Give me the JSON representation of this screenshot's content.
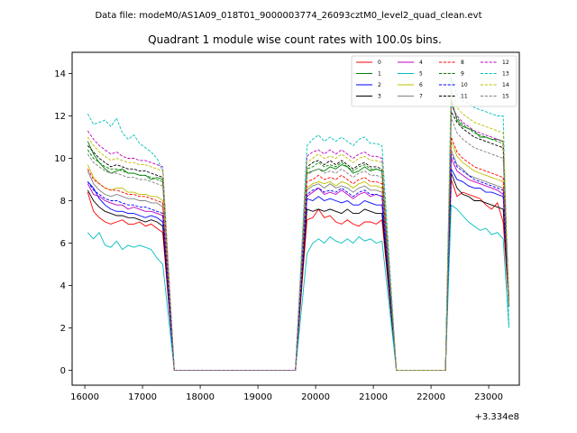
{
  "file_label": "Data file: modeM0/AS1A09_018T01_9000003774_26093cztM0_level2_quad_clean.evt",
  "chart_data": {
    "type": "line",
    "title": "Quadrant 1 module wise count rates with 100.0s bins.",
    "xlabel": "",
    "ylabel": "",
    "x_offset_label": "+3.334e8",
    "xlim": [
      15780,
      23530
    ],
    "ylim": [
      -0.7,
      15.0
    ],
    "xticks": [
      16000,
      17000,
      18000,
      19000,
      20000,
      21000,
      22000,
      23000
    ],
    "yticks": [
      0,
      2,
      4,
      6,
      8,
      10,
      12,
      14
    ],
    "bins": {
      "seg1": {
        "start": 16050,
        "end": 17350
      },
      "drop1": 17550,
      "gap1_end": 19650,
      "seg2": {
        "start": 19850,
        "end": 21150
      },
      "drop2": 21400,
      "gap2_end": 22250,
      "seg3": {
        "start": 22350,
        "end": 23250
      },
      "final": 23350
    },
    "legend": {
      "location": "upper right",
      "columns": 4
    },
    "series": [
      {
        "name": "0",
        "color": "#ff0000",
        "dash": "solid",
        "seg1": [
          8.4,
          7.5,
          7.2,
          7.0,
          6.9,
          7.0,
          7.1,
          6.9,
          6.9,
          7.0,
          6.8,
          6.9,
          6.7,
          6.5
        ],
        "seg2": [
          7.1,
          7.2,
          7.6,
          7.2,
          7.3,
          7.0,
          6.9,
          7.1,
          6.9,
          6.8,
          7.0,
          7.0,
          6.9,
          7.1
        ],
        "seg3": [
          9.0,
          8.2,
          8.4,
          8.3,
          8.2,
          8.1,
          7.8,
          7.6,
          7.9,
          7.0
        ],
        "final": 3.0
      },
      {
        "name": "1",
        "color": "#008000",
        "dash": "solid",
        "seg1": [
          10.8,
          10.2,
          9.8,
          9.5,
          9.3,
          9.4,
          9.5,
          9.3,
          9.3,
          9.2,
          9.2,
          9.0,
          9.1,
          9.0
        ],
        "seg2": [
          9.3,
          9.4,
          9.5,
          9.4,
          9.6,
          9.5,
          9.7,
          9.6,
          9.3,
          9.4,
          9.6,
          9.4,
          9.5,
          9.4
        ],
        "seg3": [
          12.8,
          11.8,
          11.5,
          11.4,
          11.3,
          11.0,
          11.0,
          10.9,
          10.9,
          10.8
        ],
        "final": 3.1
      },
      {
        "name": "2",
        "color": "#0000ff",
        "dash": "solid",
        "seg1": [
          8.9,
          8.6,
          8.1,
          7.8,
          7.6,
          7.5,
          7.5,
          7.4,
          7.4,
          7.3,
          7.2,
          7.3,
          7.2,
          7.0
        ],
        "seg2": [
          8.1,
          8.0,
          8.2,
          8.0,
          8.1,
          8.0,
          7.9,
          8.0,
          7.8,
          7.8,
          8.0,
          7.9,
          7.8,
          7.8
        ],
        "seg3": [
          9.5,
          9.0,
          8.9,
          8.7,
          8.6,
          8.6,
          8.4,
          8.4,
          8.3,
          8.2
        ],
        "final": 3.3
      },
      {
        "name": "3",
        "color": "#000000",
        "dash": "solid",
        "seg1": [
          8.5,
          8.0,
          7.7,
          7.5,
          7.4,
          7.3,
          7.3,
          7.2,
          7.2,
          7.1,
          7.0,
          7.1,
          7.0,
          6.8
        ],
        "seg2": [
          7.6,
          7.5,
          7.6,
          7.5,
          7.6,
          7.5,
          7.4,
          7.6,
          7.4,
          7.4,
          7.6,
          7.5,
          7.4,
          7.4
        ],
        "seg3": [
          9.3,
          8.6,
          8.3,
          8.2,
          8.0,
          8.0,
          7.9,
          7.8,
          7.7,
          7.6
        ],
        "final": 3.2
      },
      {
        "name": "4",
        "color": "#bf00bf",
        "dash": "solid",
        "seg1": [
          8.8,
          8.3,
          8.2,
          8.0,
          7.9,
          7.8,
          7.8,
          7.6,
          7.7,
          7.6,
          7.5,
          7.5,
          7.4,
          7.3
        ],
        "seg2": [
          8.2,
          8.4,
          8.6,
          8.3,
          8.4,
          8.3,
          8.5,
          8.3,
          8.1,
          8.3,
          8.4,
          8.2,
          8.3,
          8.2
        ],
        "seg3": [
          10.0,
          9.4,
          9.2,
          9.0,
          8.9,
          8.8,
          8.7,
          8.6,
          8.5,
          8.3
        ],
        "final": 3.4
      },
      {
        "name": "5",
        "color": "#00bfbf",
        "dash": "solid",
        "seg1": [
          6.5,
          6.2,
          6.5,
          5.9,
          5.8,
          6.1,
          5.7,
          5.9,
          5.8,
          5.9,
          5.8,
          5.7,
          5.3,
          5.0
        ],
        "seg2": [
          5.5,
          6.0,
          6.2,
          6.0,
          6.3,
          6.1,
          6.0,
          6.2,
          6.0,
          6.3,
          6.1,
          6.2,
          6.0,
          6.1
        ],
        "seg3": [
          7.8,
          7.6,
          7.3,
          7.0,
          6.8,
          6.6,
          6.7,
          6.4,
          6.5,
          6.2
        ],
        "final": 2.0
      },
      {
        "name": "6",
        "color": "#bfbf00",
        "dash": "solid",
        "seg1": [
          9.7,
          9.1,
          8.8,
          8.6,
          8.5,
          8.6,
          8.6,
          8.4,
          8.4,
          8.3,
          8.3,
          8.2,
          8.2,
          8.0
        ],
        "seg2": [
          8.6,
          8.8,
          8.9,
          8.8,
          8.9,
          8.7,
          8.9,
          8.8,
          8.6,
          8.8,
          8.9,
          8.7,
          8.7,
          8.6
        ],
        "seg3": [
          10.8,
          10.1,
          9.8,
          9.6,
          9.4,
          9.3,
          9.2,
          9.1,
          9.0,
          8.9
        ],
        "final": 3.5
      },
      {
        "name": "7",
        "color": "#808080",
        "dash": "solid",
        "seg1": [
          9.4,
          8.8,
          8.5,
          8.3,
          8.2,
          8.3,
          8.2,
          8.1,
          8.1,
          8.0,
          8.0,
          7.9,
          7.9,
          7.7
        ],
        "seg2": [
          8.5,
          8.7,
          8.8,
          8.6,
          8.8,
          8.6,
          8.7,
          8.6,
          8.4,
          8.6,
          8.7,
          8.5,
          8.5,
          8.4
        ],
        "seg3": [
          10.4,
          9.7,
          9.5,
          9.2,
          9.1,
          9.0,
          8.9,
          8.8,
          8.7,
          8.6
        ],
        "final": 3.3
      },
      {
        "name": "8",
        "color": "#ff0000",
        "dash": "dashed",
        "seg1": [
          9.5,
          9.0,
          8.8,
          8.6,
          8.5,
          8.5,
          8.4,
          8.3,
          8.3,
          8.2,
          8.2,
          8.1,
          8.0,
          7.9
        ],
        "seg2": [
          8.9,
          9.0,
          9.2,
          9.0,
          9.1,
          9.0,
          9.2,
          9.0,
          8.8,
          9.0,
          9.1,
          8.9,
          8.9,
          8.8
        ],
        "seg3": [
          11.0,
          10.3,
          10.0,
          9.8,
          9.6,
          9.5,
          9.4,
          9.3,
          9.2,
          9.1
        ],
        "final": 3.2
      },
      {
        "name": "9",
        "color": "#008000",
        "dash": "dashed",
        "seg1": [
          10.4,
          10.0,
          9.8,
          9.6,
          9.5,
          9.5,
          9.4,
          9.3,
          9.3,
          9.2,
          9.2,
          9.1,
          9.0,
          8.9
        ],
        "seg2": [
          9.5,
          9.6,
          9.8,
          9.6,
          9.7,
          9.6,
          9.8,
          9.6,
          9.4,
          9.6,
          9.7,
          9.5,
          9.5,
          9.4
        ],
        "seg3": [
          12.6,
          11.9,
          11.6,
          11.4,
          11.2,
          11.1,
          11.0,
          10.9,
          10.8,
          10.7
        ],
        "final": 3.0
      },
      {
        "name": "10",
        "color": "#0000ff",
        "dash": "dashed",
        "seg1": [
          8.9,
          8.5,
          8.3,
          8.1,
          8.0,
          8.0,
          7.9,
          7.8,
          7.8,
          7.7,
          7.7,
          7.6,
          7.5,
          7.4
        ],
        "seg2": [
          8.3,
          8.5,
          8.6,
          8.4,
          8.5,
          8.4,
          8.6,
          8.4,
          8.2,
          8.4,
          8.5,
          8.3,
          8.3,
          8.2
        ],
        "seg3": [
          10.2,
          9.6,
          9.4,
          9.2,
          9.0,
          8.9,
          8.8,
          8.7,
          8.6,
          8.5
        ],
        "final": 3.3
      },
      {
        "name": "11",
        "color": "#000000",
        "dash": "dashed",
        "seg1": [
          10.6,
          10.3,
          10.0,
          9.8,
          9.6,
          9.7,
          9.6,
          9.5,
          9.5,
          9.4,
          9.4,
          9.3,
          9.2,
          9.1
        ],
        "seg2": [
          9.6,
          9.8,
          9.9,
          9.7,
          9.9,
          9.7,
          9.9,
          9.7,
          9.5,
          9.7,
          9.8,
          9.6,
          9.6,
          9.5
        ],
        "seg3": [
          12.2,
          11.7,
          11.4,
          11.2,
          11.0,
          10.9,
          10.8,
          10.7,
          10.6,
          10.5
        ],
        "final": 3.1
      },
      {
        "name": "12",
        "color": "#bf00bf",
        "dash": "dashed",
        "seg1": [
          11.3,
          10.9,
          10.6,
          10.4,
          10.2,
          10.3,
          10.1,
          10.0,
          10.0,
          9.9,
          9.9,
          9.8,
          9.7,
          9.6
        ],
        "seg2": [
          10.1,
          10.3,
          10.4,
          10.2,
          10.4,
          10.2,
          10.4,
          10.2,
          10.0,
          10.2,
          10.3,
          10.1,
          10.1,
          10.0
        ],
        "seg3": [
          12.5,
          12.0,
          11.7,
          11.5,
          11.3,
          11.2,
          11.1,
          11.0,
          10.9,
          10.8
        ],
        "final": 3.4
      },
      {
        "name": "13",
        "color": "#00bfbf",
        "dash": "dashed",
        "seg1": [
          12.1,
          11.6,
          11.7,
          11.8,
          11.5,
          11.9,
          11.2,
          10.9,
          11.1,
          10.7,
          10.5,
          10.3,
          10.0,
          9.4
        ],
        "seg2": [
          10.6,
          10.9,
          11.1,
          10.8,
          11.0,
          10.8,
          11.0,
          10.8,
          10.6,
          10.9,
          11.0,
          10.7,
          10.7,
          10.6
        ],
        "seg3": [
          13.8,
          13.0,
          12.7,
          12.6,
          12.4,
          12.3,
          12.2,
          12.1,
          12.0,
          12.0
        ],
        "final": 2.1
      },
      {
        "name": "14",
        "color": "#bfbf00",
        "dash": "dashed",
        "seg1": [
          11.0,
          10.6,
          10.3,
          10.1,
          9.9,
          10.0,
          9.9,
          9.8,
          9.8,
          9.7,
          9.7,
          9.6,
          9.5,
          9.4
        ],
        "seg2": [
          9.8,
          10.0,
          10.2,
          10.0,
          10.1,
          10.0,
          10.2,
          10.0,
          9.8,
          10.0,
          10.1,
          9.9,
          9.9,
          9.8
        ],
        "seg3": [
          13.2,
          12.4,
          12.1,
          11.9,
          11.7,
          11.6,
          11.5,
          11.4,
          11.3,
          11.2
        ],
        "final": 3.2
      },
      {
        "name": "15",
        "color": "#808080",
        "dash": "dashed",
        "seg1": [
          10.2,
          9.8,
          9.6,
          9.4,
          9.3,
          9.3,
          9.2,
          9.1,
          9.1,
          9.0,
          9.0,
          8.9,
          8.8,
          8.7
        ],
        "seg2": [
          9.2,
          9.4,
          9.5,
          9.3,
          9.4,
          9.3,
          9.5,
          9.3,
          9.1,
          9.3,
          9.4,
          9.2,
          9.2,
          9.1
        ],
        "seg3": [
          11.9,
          11.2,
          10.9,
          10.7,
          10.5,
          10.4,
          10.3,
          10.2,
          10.1,
          10.0
        ],
        "final": 3.0
      }
    ]
  }
}
